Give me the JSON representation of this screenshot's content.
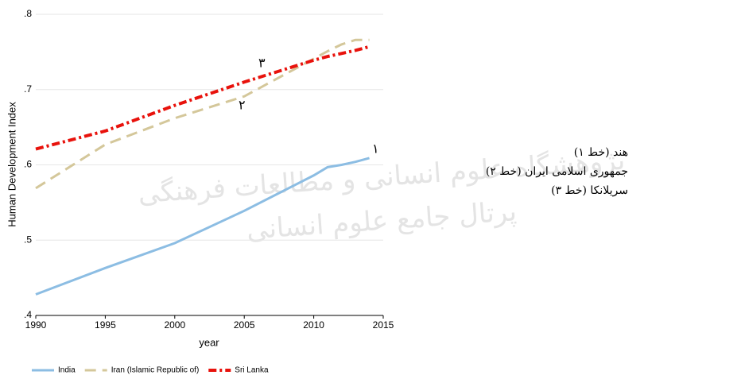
{
  "chart_data": {
    "type": "line",
    "y_label": "Human Development Index",
    "x_label": "year",
    "x": [
      1990,
      1995,
      2000,
      2005,
      2010,
      2011,
      2012,
      2013,
      2014
    ],
    "series": [
      {
        "name": "India",
        "color": "#8cbde3",
        "dash": "solid",
        "values": [
          0.428,
          0.463,
          0.496,
          0.539,
          0.586,
          0.597,
          0.6,
          0.604,
          0.609
        ]
      },
      {
        "name": "Iran (Islamic Republic of)",
        "color": "#d4c79a",
        "dash": "longdash",
        "values": [
          0.569,
          0.627,
          0.662,
          0.691,
          0.741,
          0.751,
          0.76,
          0.766,
          0.766
        ]
      },
      {
        "name": "Sri Lanka",
        "color": "#e8120c",
        "dash": "dashdot",
        "values": [
          0.621,
          0.645,
          0.679,
          0.71,
          0.739,
          0.744,
          0.748,
          0.752,
          0.757
        ]
      }
    ],
    "xlim": [
      1990,
      2015
    ],
    "xticks": [
      1990,
      1995,
      2000,
      2005,
      2010,
      2015
    ],
    "ylim": [
      0.4,
      0.8
    ],
    "yticks": [
      {
        "value": 0.4,
        "label": ".4"
      },
      {
        "value": 0.5,
        "label": ".5"
      },
      {
        "value": 0.6,
        "label": ".6"
      },
      {
        "value": 0.7,
        "label": ".7"
      },
      {
        "value": 0.8,
        "label": ".8"
      }
    ],
    "grid": true,
    "legend": "bottom",
    "line_labels": [
      "۱",
      "۲",
      "۳"
    ],
    "notes": [
      "هند (خط ۱)",
      "جمهوری اسلامی ایران (خط ۲)",
      "سریلانکا (خط ۳)"
    ],
    "watermark": [
      "پژوهشگاه علوم انسانی و مطالعات فرهنگی",
      "پرتال جامع علوم انسانی"
    ]
  }
}
